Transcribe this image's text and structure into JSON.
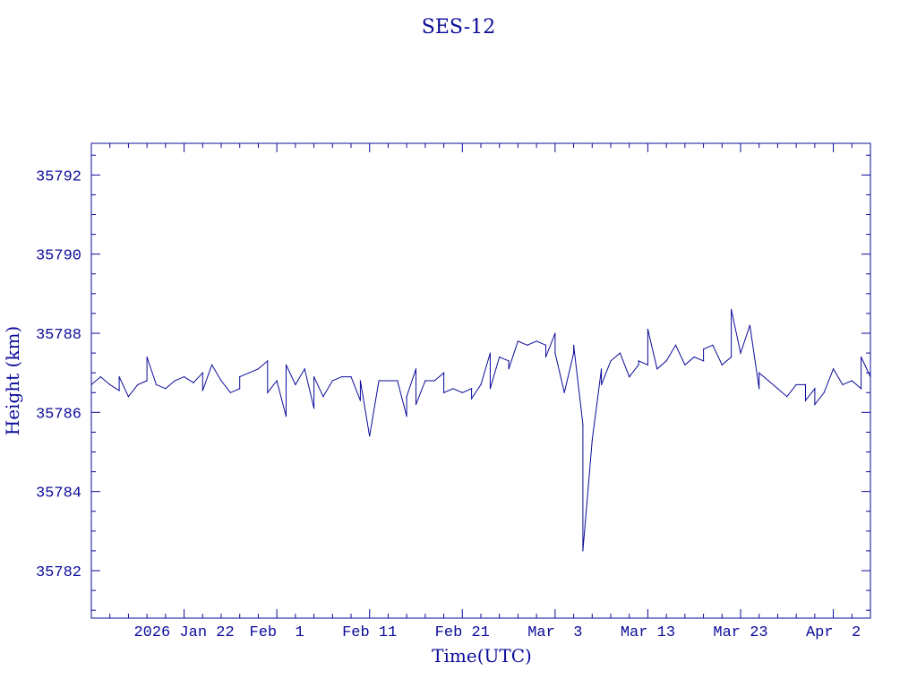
{
  "chart_data": {
    "type": "line",
    "title": "SES-12",
    "xlabel": "Time(UTC)",
    "ylabel": "Height (km)",
    "ylim": [
      35780.8,
      35792.8
    ],
    "xlim": [
      "2026-01-12",
      "2026-04-06"
    ],
    "grid": false,
    "color": "#0b0b9a",
    "y_ticks": [
      35782,
      35784,
      35786,
      35788,
      35790,
      35792
    ],
    "x_ticks": [
      {
        "date": "2026-01-22",
        "label": "2026 Jan 22"
      },
      {
        "date": "2026-02-01",
        "label": "Feb  1"
      },
      {
        "date": "2026-02-11",
        "label": "Feb 11"
      },
      {
        "date": "2026-02-21",
        "label": "Feb 21"
      },
      {
        "date": "2026-03-03",
        "label": "Mar  3"
      },
      {
        "date": "2026-03-13",
        "label": "Mar 13"
      },
      {
        "date": "2026-03-23",
        "label": "Mar 23"
      },
      {
        "date": "2026-04-02",
        "label": "Apr  2"
      }
    ],
    "series": [
      {
        "points": [
          [
            "2026-01-12",
            35786.7
          ],
          [
            "2026-01-13",
            35786.9
          ],
          [
            "2026-01-14",
            35786.7
          ],
          [
            "2026-01-15",
            35786.55
          ],
          [
            "2026-01-15",
            35786.9
          ],
          [
            "2026-01-16",
            35786.4
          ],
          [
            "2026-01-17",
            35786.7
          ],
          [
            "2026-01-18",
            35786.8
          ],
          [
            "2026-01-18",
            35787.4
          ],
          [
            "2026-01-19",
            35786.7
          ],
          [
            "2026-01-20",
            35786.6
          ],
          [
            "2026-01-21",
            35786.8
          ],
          [
            "2026-01-22",
            35786.9
          ],
          [
            "2026-01-23",
            35786.75
          ],
          [
            "2026-01-24",
            35787.0
          ],
          [
            "2026-01-24",
            35786.55
          ],
          [
            "2026-01-25",
            35787.2
          ],
          [
            "2026-01-26",
            35786.8
          ],
          [
            "2026-01-27",
            35786.5
          ],
          [
            "2026-01-28",
            35786.6
          ],
          [
            "2026-01-28",
            35786.9
          ],
          [
            "2026-01-29",
            35787.0
          ],
          [
            "2026-01-30",
            35787.1
          ],
          [
            "2026-01-31",
            35787.3
          ],
          [
            "2026-01-31",
            35786.5
          ],
          [
            "2026-02-01",
            35786.8
          ],
          [
            "2026-02-02",
            35785.9
          ],
          [
            "2026-02-02",
            35787.2
          ],
          [
            "2026-02-03",
            35786.7
          ],
          [
            "2026-02-04",
            35787.1
          ],
          [
            "2026-02-05",
            35786.1
          ],
          [
            "2026-02-05",
            35786.9
          ],
          [
            "2026-02-06",
            35786.4
          ],
          [
            "2026-02-07",
            35786.8
          ],
          [
            "2026-02-08",
            35786.9
          ],
          [
            "2026-02-09",
            35786.9
          ],
          [
            "2026-02-10",
            35786.3
          ],
          [
            "2026-02-10",
            35786.8
          ],
          [
            "2026-02-11",
            35785.4
          ],
          [
            "2026-02-12",
            35786.8
          ],
          [
            "2026-02-13",
            35786.8
          ],
          [
            "2026-02-14",
            35786.8
          ],
          [
            "2026-02-15",
            35785.9
          ],
          [
            "2026-02-15",
            35786.4
          ],
          [
            "2026-02-16",
            35787.1
          ],
          [
            "2026-02-16",
            35786.2
          ],
          [
            "2026-02-17",
            35786.8
          ],
          [
            "2026-02-18",
            35786.8
          ],
          [
            "2026-02-19",
            35787.0
          ],
          [
            "2026-02-19",
            35786.5
          ],
          [
            "2026-02-20",
            35786.6
          ],
          [
            "2026-02-21",
            35786.5
          ],
          [
            "2026-02-22",
            35786.6
          ],
          [
            "2026-02-22",
            35786.35
          ],
          [
            "2026-02-23",
            35786.7
          ],
          [
            "2026-02-24",
            35787.5
          ],
          [
            "2026-02-24",
            35786.6
          ],
          [
            "2026-02-25",
            35787.4
          ],
          [
            "2026-02-26",
            35787.3
          ],
          [
            "2026-02-26",
            35787.1
          ],
          [
            "2026-02-27",
            35787.8
          ],
          [
            "2026-02-28",
            35787.7
          ],
          [
            "2026-03-01",
            35787.8
          ],
          [
            "2026-03-02",
            35787.7
          ],
          [
            "2026-03-02",
            35787.4
          ],
          [
            "2026-03-03",
            35788.0
          ],
          [
            "2026-03-03",
            35787.5
          ],
          [
            "2026-03-04",
            35786.5
          ],
          [
            "2026-03-05",
            35787.5
          ],
          [
            "2026-03-05",
            35787.7
          ],
          [
            "2026-03-06",
            35785.7
          ],
          [
            "2026-03-06",
            35782.5
          ],
          [
            "2026-03-07",
            35785.3
          ],
          [
            "2026-03-08",
            35787.1
          ],
          [
            "2026-03-08",
            35786.7
          ],
          [
            "2026-03-09",
            35787.3
          ],
          [
            "2026-03-10",
            35787.5
          ],
          [
            "2026-03-11",
            35786.9
          ],
          [
            "2026-03-12",
            35787.2
          ],
          [
            "2026-03-12",
            35787.3
          ],
          [
            "2026-03-13",
            35787.2
          ],
          [
            "2026-03-13",
            35788.1
          ],
          [
            "2026-03-14",
            35787.1
          ],
          [
            "2026-03-15",
            35787.3
          ],
          [
            "2026-03-16",
            35787.7
          ],
          [
            "2026-03-17",
            35787.2
          ],
          [
            "2026-03-18",
            35787.4
          ],
          [
            "2026-03-19",
            35787.3
          ],
          [
            "2026-03-19",
            35787.6
          ],
          [
            "2026-03-20",
            35787.7
          ],
          [
            "2026-03-21",
            35787.2
          ],
          [
            "2026-03-22",
            35787.4
          ],
          [
            "2026-03-22",
            35788.6
          ],
          [
            "2026-03-23",
            35787.5
          ],
          [
            "2026-03-24",
            35788.2
          ],
          [
            "2026-03-25",
            35786.6
          ],
          [
            "2026-03-25",
            35787.0
          ],
          [
            "2026-03-26",
            35786.8
          ],
          [
            "2026-03-27",
            35786.6
          ],
          [
            "2026-03-28",
            35786.4
          ],
          [
            "2026-03-29",
            35786.7
          ],
          [
            "2026-03-30",
            35786.7
          ],
          [
            "2026-03-30",
            35786.3
          ],
          [
            "2026-03-31",
            35786.6
          ],
          [
            "2026-03-31",
            35786.2
          ],
          [
            "2026-04-01",
            35786.5
          ],
          [
            "2026-04-02",
            35787.1
          ],
          [
            "2026-04-03",
            35786.7
          ],
          [
            "2026-04-04",
            35786.8
          ],
          [
            "2026-04-05",
            35786.6
          ],
          [
            "2026-04-05",
            35787.4
          ],
          [
            "2026-04-06",
            35786.9
          ]
        ]
      }
    ]
  }
}
